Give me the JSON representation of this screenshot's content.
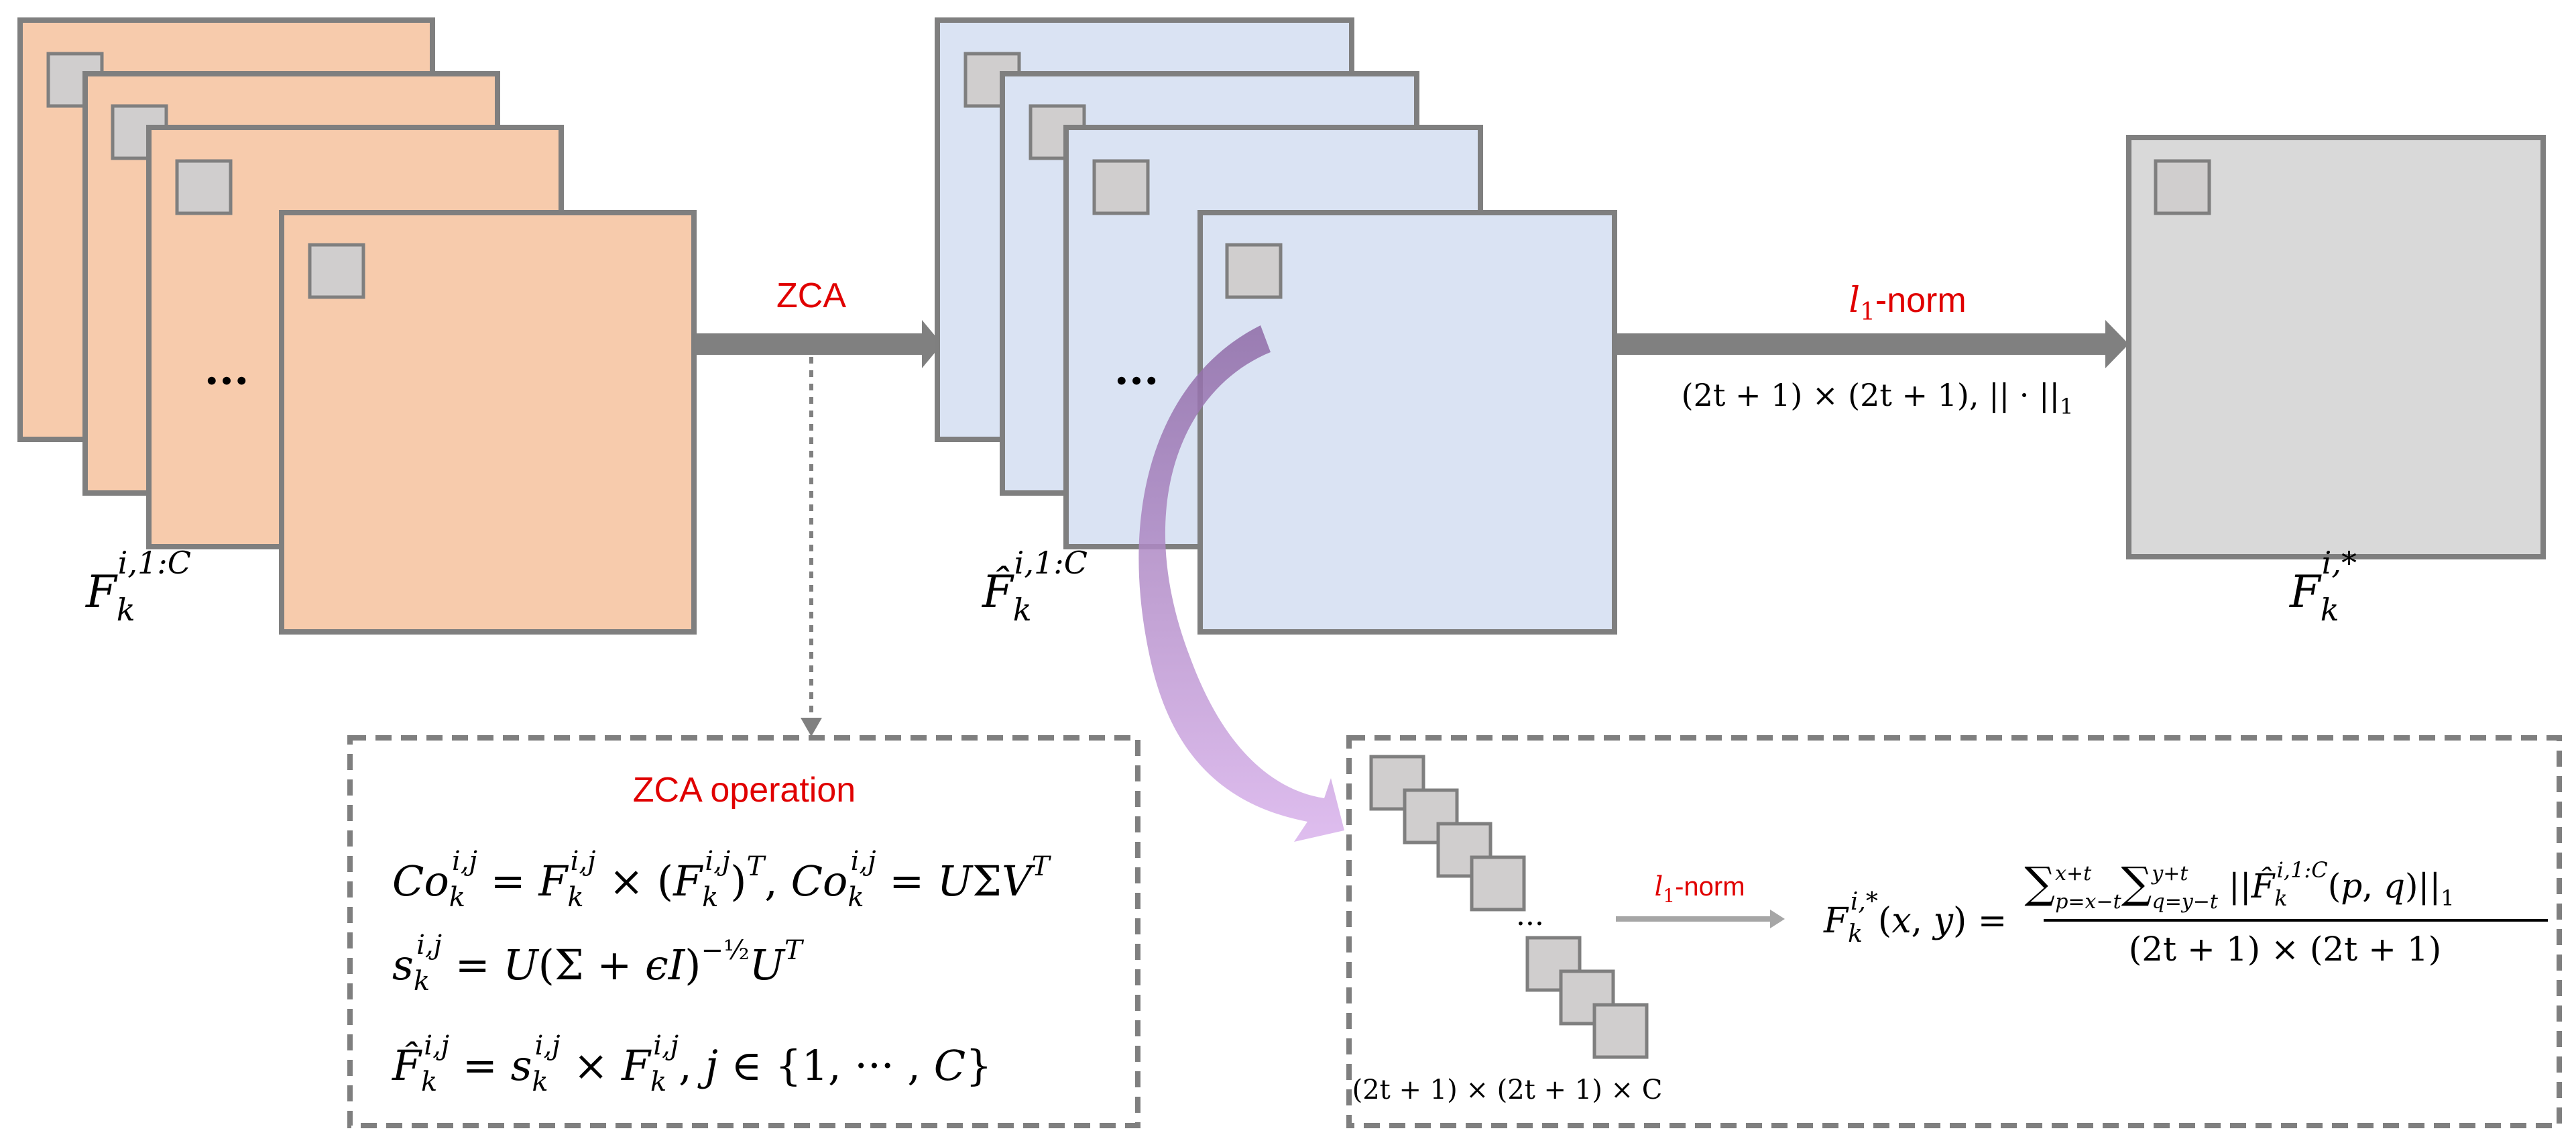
{
  "colors": {
    "orange_fill": "#F7CBAC",
    "blue_fill": "#DAE3F3",
    "gray_fill": "#D9D9D9",
    "patch_fill": "#D0CECE",
    "border": "#7F7F7F",
    "arrow": "#808080",
    "red_text": "#E00000",
    "purple_arrow": "#C9A0DC"
  },
  "stage_input": {
    "label_main": "F",
    "label_sub": "k",
    "label_sup": "i,1:C",
    "ellipsis": "···"
  },
  "stage_zca": {
    "arrow_label": "ZCA",
    "label_main": "F̂",
    "label_sub": "k",
    "label_sup": "i,1:C",
    "ellipsis": "···"
  },
  "stage_l1": {
    "arrow_label_var": "l",
    "arrow_label_sub": "1",
    "arrow_label_rest": "-norm",
    "under_arrow_text": "(2t + 1) × (2t + 1), || · ||",
    "under_arrow_sub": "1"
  },
  "stage_output": {
    "label_main": "F",
    "label_sub": "k",
    "label_sup": "i,*"
  },
  "zca_box": {
    "title": "ZCA operation",
    "eq1": "Co_k^{i,j} = F_k^{i,j} × (F_k^{i,j})^T , Co_k^{i,j} = UΣV^T",
    "eq2": "s_k^{i,j} = U(Σ + εI)^{-1/2} U^T",
    "eq3": "F̂_k^{i,j} = s_k^{i,j} × F_k^{i,j} , j ∈ {1, ··· , C}"
  },
  "l1_box": {
    "arrow_label_var": "l",
    "arrow_label_sub": "1",
    "arrow_label_rest": "-norm",
    "ellipsis": "···",
    "stack_caption": "(2t + 1) × (2t + 1) × C",
    "formula_lhs": "F_k^{i,*}(x, y) =",
    "numerator": "Σ_{p=x−t}^{x+t} Σ_{q=y−t}^{y+t} ||F̂_k^{i,1:C}(p, q)||_1",
    "denominator": "(2t + 1) × (2t + 1)"
  }
}
